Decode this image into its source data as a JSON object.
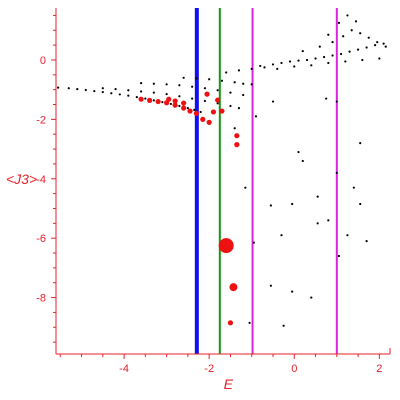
{
  "chart_data": {
    "type": "scatter",
    "xlabel": "E",
    "ylabel": "<J3>",
    "xlim": [
      -5.6,
      2.25
    ],
    "ylim": [
      -9.9,
      1.75
    ],
    "x_ticks": [
      -4,
      -2,
      0,
      2
    ],
    "y_ticks": [
      0,
      -2,
      -4,
      -6,
      -8
    ],
    "x_tick_labels": [
      "-4",
      "-2",
      "0",
      "2"
    ],
    "y_tick_labels": [
      "0",
      "-2",
      "-4",
      "-6",
      "-8"
    ],
    "grid": false,
    "legend": "none",
    "axis_color": "#e8202a",
    "vertical_lines": [
      {
        "x": -2.29,
        "color": "#1010ee",
        "width": 4
      },
      {
        "x": -1.75,
        "color": "#119911",
        "width": 2
      },
      {
        "x": -0.98,
        "color": "#dd22dd",
        "width": 2
      },
      {
        "x": 1.0,
        "color": "#dd22dd",
        "width": 2
      }
    ],
    "series": [
      {
        "color": "#000000",
        "marker": "dot",
        "points": [
          [
            -5.55,
            -0.93
          ],
          [
            -5.3,
            -0.95
          ],
          [
            -5.1,
            -0.98
          ],
          [
            -4.9,
            -1.01
          ],
          [
            -4.7,
            -1.05
          ],
          [
            -4.5,
            -1.08
          ],
          [
            -4.3,
            -1.12
          ],
          [
            -4.1,
            -1.16
          ],
          [
            -3.9,
            -1.2
          ],
          [
            -3.7,
            -1.25
          ],
          [
            -3.5,
            -1.3
          ],
          [
            -3.3,
            -1.36
          ],
          [
            -3.1,
            -1.42
          ],
          [
            -2.9,
            -1.48
          ],
          [
            -2.7,
            -1.55
          ],
          [
            -2.5,
            -1.62
          ],
          [
            -2.35,
            -1.68
          ],
          [
            -2.2,
            -1.75
          ],
          [
            -4.5,
            -0.95
          ],
          [
            -4.2,
            -0.98
          ],
          [
            -3.9,
            -1.02
          ],
          [
            -3.6,
            -1.06
          ],
          [
            -3.3,
            -1.1
          ],
          [
            -3.0,
            -1.15
          ],
          [
            -2.7,
            -1.22
          ],
          [
            -2.4,
            -1.3
          ],
          [
            -2.1,
            -1.38
          ],
          [
            -1.8,
            -1.46
          ],
          [
            -1.5,
            -1.55
          ],
          [
            -1.3,
            -1.62
          ],
          [
            -3.6,
            -0.78
          ],
          [
            -3.3,
            -0.8
          ],
          [
            -3.0,
            -0.82
          ],
          [
            -2.7,
            -0.85
          ],
          [
            -2.4,
            -0.9
          ],
          [
            -2.1,
            -0.95
          ],
          [
            -1.8,
            -1.02
          ],
          [
            -1.5,
            -1.1
          ],
          [
            -1.2,
            -1.18
          ],
          [
            -2.6,
            -0.6
          ],
          [
            -2.3,
            -0.62
          ],
          [
            -2.0,
            -0.65
          ],
          [
            -1.7,
            -0.7
          ],
          [
            -1.4,
            -0.75
          ],
          [
            -1.2,
            -0.8
          ],
          [
            -1.0,
            -0.82
          ],
          [
            -1.6,
            -0.42
          ],
          [
            -1.3,
            -0.35
          ],
          [
            -1.0,
            -0.3
          ],
          [
            -0.7,
            -0.25
          ],
          [
            -0.5,
            -0.15
          ],
          [
            -0.3,
            -0.1
          ],
          [
            -0.1,
            -0.05
          ],
          [
            0.1,
            -0.02
          ],
          [
            0.3,
            0.0
          ],
          [
            0.5,
            0.05
          ],
          [
            0.7,
            0.1
          ],
          [
            0.9,
            0.15
          ],
          [
            1.1,
            0.2
          ],
          [
            1.3,
            0.28
          ],
          [
            1.5,
            0.35
          ],
          [
            1.7,
            0.42
          ],
          [
            1.9,
            0.5
          ],
          [
            2.1,
            0.55
          ],
          [
            -0.8,
            -0.2
          ],
          [
            -0.4,
            -0.3
          ],
          [
            0.0,
            -0.22
          ],
          [
            0.4,
            -0.18
          ],
          [
            0.8,
            -0.1
          ],
          [
            1.2,
            -0.05
          ],
          [
            1.6,
            0.0
          ],
          [
            2.0,
            0.05
          ],
          [
            0.2,
            0.3
          ],
          [
            0.6,
            0.45
          ],
          [
            0.9,
            0.6
          ],
          [
            1.15,
            0.8
          ],
          [
            1.35,
            1.0
          ],
          [
            1.55,
            0.9
          ],
          [
            1.75,
            0.75
          ],
          [
            1.95,
            0.6
          ],
          [
            2.15,
            0.45
          ],
          [
            1.25,
            1.5
          ],
          [
            1.45,
            1.3
          ],
          [
            0.8,
            0.85
          ],
          [
            1.05,
            1.25
          ],
          [
            -0.5,
            -1.4
          ],
          [
            -0.9,
            -1.9
          ],
          [
            -1.4,
            -2.3
          ],
          [
            0.75,
            -1.3
          ],
          [
            1.0,
            -1.4
          ],
          [
            1.55,
            -2.8
          ],
          [
            0.1,
            -3.1
          ],
          [
            0.2,
            -3.4
          ],
          [
            1.0,
            -3.8
          ],
          [
            1.4,
            -4.3
          ],
          [
            1.55,
            -4.85
          ],
          [
            -1.15,
            -4.3
          ],
          [
            0.55,
            -4.6
          ],
          [
            -0.05,
            -4.85
          ],
          [
            -0.55,
            -4.9
          ],
          [
            0.8,
            -5.4
          ],
          [
            0.55,
            -5.5
          ],
          [
            -0.3,
            -5.9
          ],
          [
            1.25,
            -5.9
          ],
          [
            1.7,
            -6.1
          ],
          [
            -0.95,
            -6.15
          ],
          [
            1.05,
            -6.6
          ],
          [
            -0.55,
            -7.6
          ],
          [
            -0.05,
            -7.8
          ],
          [
            0.4,
            -8.0
          ],
          [
            -1.05,
            -8.85
          ],
          [
            -0.25,
            -8.95
          ]
        ]
      },
      {
        "color": "#ee1111",
        "marker": "blob",
        "points": [
          [
            -3.6,
            -1.32
          ],
          [
            -3.4,
            -1.36
          ],
          [
            -3.2,
            -1.4
          ],
          [
            -3.0,
            -1.44
          ],
          [
            -2.8,
            -1.52
          ],
          [
            -2.6,
            -1.62
          ],
          [
            -2.45,
            -1.72
          ],
          [
            -2.3,
            -1.8
          ],
          [
            -2.15,
            -2.0
          ],
          [
            -2.0,
            -2.1
          ],
          [
            -1.9,
            -1.75
          ],
          [
            -1.7,
            -1.72
          ],
          [
            -2.05,
            -1.15
          ],
          [
            -1.8,
            -1.35
          ],
          [
            -2.8,
            -1.38
          ],
          [
            -2.95,
            -1.32
          ],
          [
            -2.6,
            -1.45
          ],
          [
            -1.35,
            -2.55
          ],
          [
            -1.35,
            -2.85
          ],
          [
            -1.5,
            -8.85
          ]
        ]
      },
      {
        "color": "#ee1111",
        "marker": "big",
        "points": [
          [
            -1.6,
            -6.25
          ],
          [
            -1.43,
            -7.65
          ]
        ]
      }
    ]
  }
}
